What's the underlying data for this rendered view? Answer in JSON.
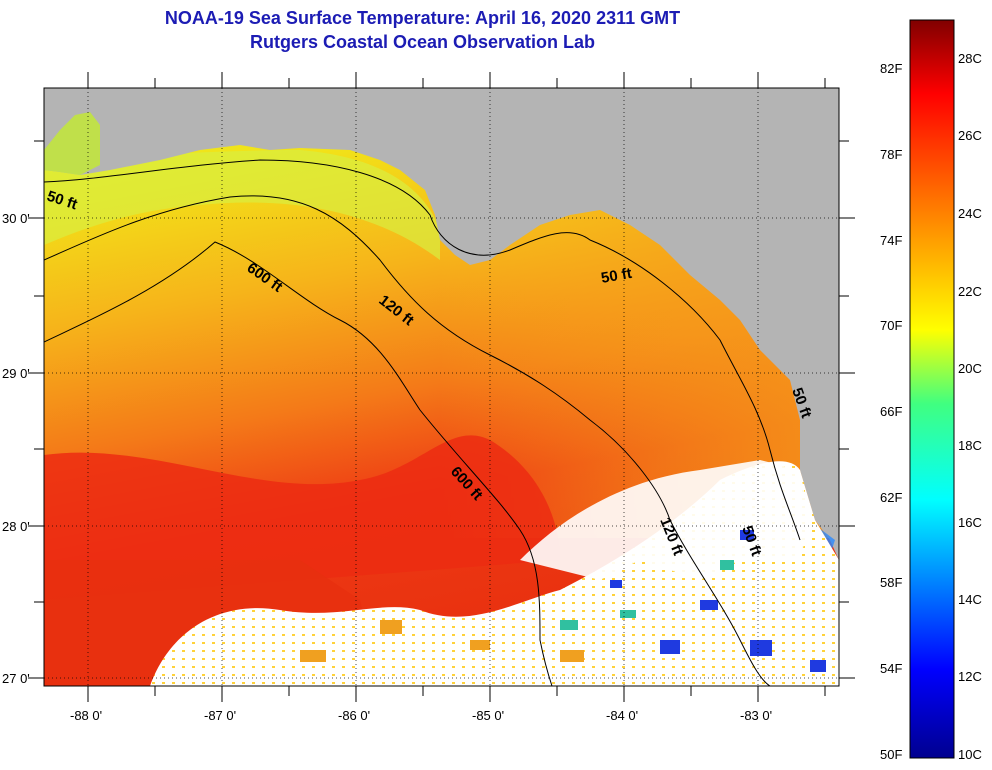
{
  "title_line1": "NOAA-19 Sea Surface Temperature:  April 16, 2020 2311 GMT",
  "title_line2": "Rutgers Coastal Ocean Observation Lab",
  "lat_labels": [
    "30 0'",
    "29 0'",
    "28 0'",
    "27 0'"
  ],
  "lon_labels": [
    "-88 0'",
    "-87 0'",
    "-86 0'",
    "-85 0'",
    "-84 0'",
    "-83 0'"
  ],
  "contour_labels": [
    "50 ft",
    "600 ft",
    "120 ft",
    "50 ft",
    "600 ft",
    "120 ft",
    "50 ft",
    "50 ft"
  ],
  "colorbar": {
    "fahrenheit": [
      "82F",
      "78F",
      "74F",
      "70F",
      "66F",
      "62F",
      "58F",
      "54F",
      "50F"
    ],
    "celsius": [
      "28C",
      "26C",
      "24C",
      "22C",
      "20C",
      "18C",
      "16C",
      "14C",
      "12C",
      "10C"
    ]
  },
  "colors": {
    "title": "#1c1cb4",
    "land": "#b4b4b4",
    "clouds": "#ffffff"
  }
}
